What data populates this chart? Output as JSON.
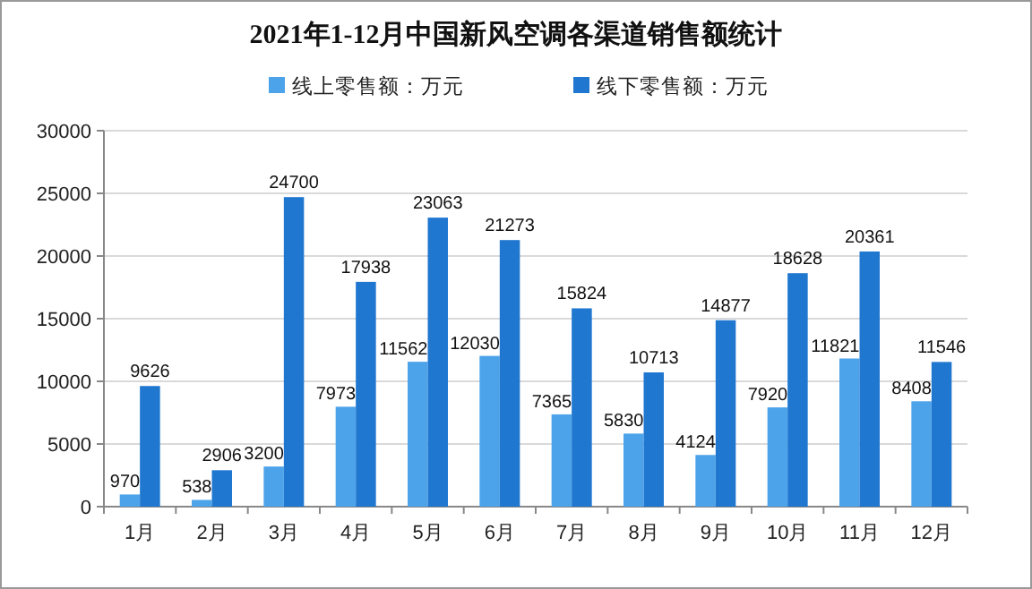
{
  "chart_data": {
    "type": "bar",
    "title": "2021年1-12月中国新风空调各渠道销售额统计",
    "categories": [
      "1月",
      "2月",
      "3月",
      "4月",
      "5月",
      "6月",
      "7月",
      "8月",
      "9月",
      "10月",
      "11月",
      "12月"
    ],
    "series": [
      {
        "name": "线上零售额：万元",
        "color": "#4da3ea",
        "values": [
          970,
          538,
          3200,
          7973,
          11562,
          12030,
          7365,
          5830,
          4124,
          7920,
          11821,
          8408
        ]
      },
      {
        "name": "线下零售额：万元",
        "color": "#1f77d0",
        "values": [
          9626,
          2906,
          24700,
          17938,
          23063,
          21273,
          15824,
          10713,
          14877,
          18628,
          20361,
          11546
        ]
      }
    ],
    "ylim": [
      0,
      30000
    ],
    "yticks": [
      0,
      5000,
      10000,
      15000,
      20000,
      25000,
      30000
    ],
    "grid": "y",
    "legend": "top",
    "data_labels": true
  }
}
